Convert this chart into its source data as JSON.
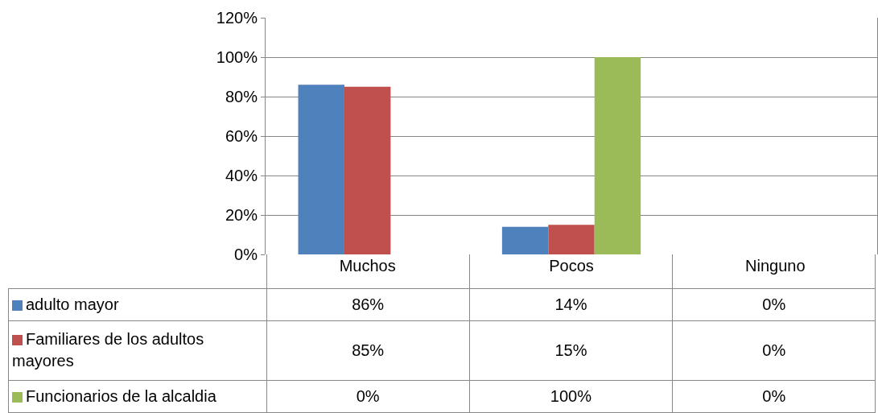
{
  "chart_data": {
    "type": "bar",
    "categories": [
      "Muchos",
      "Pocos",
      "Ninguno"
    ],
    "series": [
      {
        "name": "adulto mayor",
        "color": "#4f81bd",
        "values": [
          86,
          14,
          0
        ],
        "value_labels": [
          "86%",
          "14%",
          "0%"
        ]
      },
      {
        "name": "Familiares de los adultos mayores",
        "color": "#c0504d",
        "values": [
          85,
          15,
          0
        ],
        "value_labels": [
          "85%",
          "15%",
          "0%"
        ]
      },
      {
        "name": "Funcionarios de la alcaldia",
        "color": "#9bbb59",
        "values": [
          0,
          100,
          0
        ],
        "value_labels": [
          "0%",
          "100%",
          "0%"
        ]
      }
    ],
    "ylim": [
      0,
      120
    ],
    "yticks": [
      {
        "value": 0,
        "label": "0%"
      },
      {
        "value": 20,
        "label": "20%"
      },
      {
        "value": 40,
        "label": "40%"
      },
      {
        "value": 60,
        "label": "60%"
      },
      {
        "value": 80,
        "label": "80%"
      },
      {
        "value": 100,
        "label": "100%"
      },
      {
        "value": 120,
        "label": "120%"
      }
    ],
    "grid": "y",
    "legend": "bottom"
  }
}
